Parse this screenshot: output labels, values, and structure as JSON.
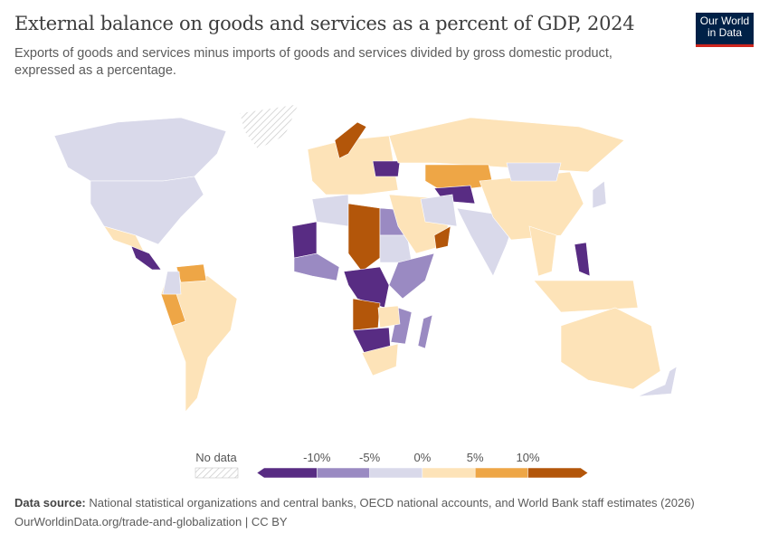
{
  "header": {
    "title": "External balance on goods and services as a percent of GDP, 2024",
    "subtitle": "Exports of goods and services minus imports of goods and services divided by gross domestic product, expressed as a percentage.",
    "logo_text": "Our World in Data"
  },
  "chart_data": {
    "type": "choropleth-map",
    "title": "External balance on goods and services as a percent of GDP, 2024",
    "legend": {
      "no_data_label": "No data",
      "tick_labels": [
        "-10%",
        "-5%",
        "0%",
        "5%",
        "10%"
      ],
      "bins": [
        {
          "range": "< -10%",
          "color": "#582c83"
        },
        {
          "range": "-10% to -5%",
          "color": "#9a8ac2"
        },
        {
          "range": "-5% to 0%",
          "color": "#d9d9ea"
        },
        {
          "range": "0% to 5%",
          "color": "#fde3b8"
        },
        {
          "range": "5% to 10%",
          "color": "#eea646"
        },
        {
          "range": "> 10%",
          "color": "#b3560a"
        }
      ]
    },
    "regions": [
      {
        "id": "canada",
        "bin": 2
      },
      {
        "id": "usa",
        "bin": 2
      },
      {
        "id": "mexico",
        "bin": 3
      },
      {
        "id": "central-america",
        "bin": 0
      },
      {
        "id": "greenland",
        "bin": -1
      },
      {
        "id": "south-america",
        "bin": 3
      },
      {
        "id": "venezuela",
        "bin": 4
      },
      {
        "id": "peru",
        "bin": 4
      },
      {
        "id": "colombia",
        "bin": 2
      },
      {
        "id": "west-africa",
        "bin": 1
      },
      {
        "id": "mauritania-mali",
        "bin": 0
      },
      {
        "id": "algeria",
        "bin": 2
      },
      {
        "id": "libya-chad",
        "bin": 5
      },
      {
        "id": "egypt",
        "bin": 1
      },
      {
        "id": "sudan",
        "bin": 2
      },
      {
        "id": "east-africa",
        "bin": 1
      },
      {
        "id": "congo",
        "bin": 0
      },
      {
        "id": "angola",
        "bin": 5
      },
      {
        "id": "namibia-botswana",
        "bin": 0
      },
      {
        "id": "south-africa",
        "bin": 3
      },
      {
        "id": "mozambique",
        "bin": 1
      },
      {
        "id": "madagascar",
        "bin": 1
      },
      {
        "id": "zambia",
        "bin": 3
      },
      {
        "id": "europe",
        "bin": 3
      },
      {
        "id": "norway",
        "bin": 5
      },
      {
        "id": "ukraine",
        "bin": 0
      },
      {
        "id": "russia",
        "bin": 3
      },
      {
        "id": "kazakhstan",
        "bin": 4
      },
      {
        "id": "central-asia",
        "bin": 0
      },
      {
        "id": "middle-east",
        "bin": 3
      },
      {
        "id": "oman",
        "bin": 5
      },
      {
        "id": "iran",
        "bin": 2
      },
      {
        "id": "india",
        "bin": 2
      },
      {
        "id": "china",
        "bin": 3
      },
      {
        "id": "mongolia",
        "bin": 2
      },
      {
        "id": "southeast-asia",
        "bin": 3
      },
      {
        "id": "philippines",
        "bin": 0
      },
      {
        "id": "indonesia",
        "bin": 3
      },
      {
        "id": "japan",
        "bin": 2
      },
      {
        "id": "australia",
        "bin": 3
      },
      {
        "id": "new-zealand",
        "bin": 2
      }
    ]
  },
  "footer": {
    "source_label": "Data source:",
    "source_text": "National statistical organizations and central banks, OECD national accounts, and World Bank staff estimates (2026)",
    "url_text": "OurWorldinData.org/trade-and-globalization | CC BY"
  }
}
